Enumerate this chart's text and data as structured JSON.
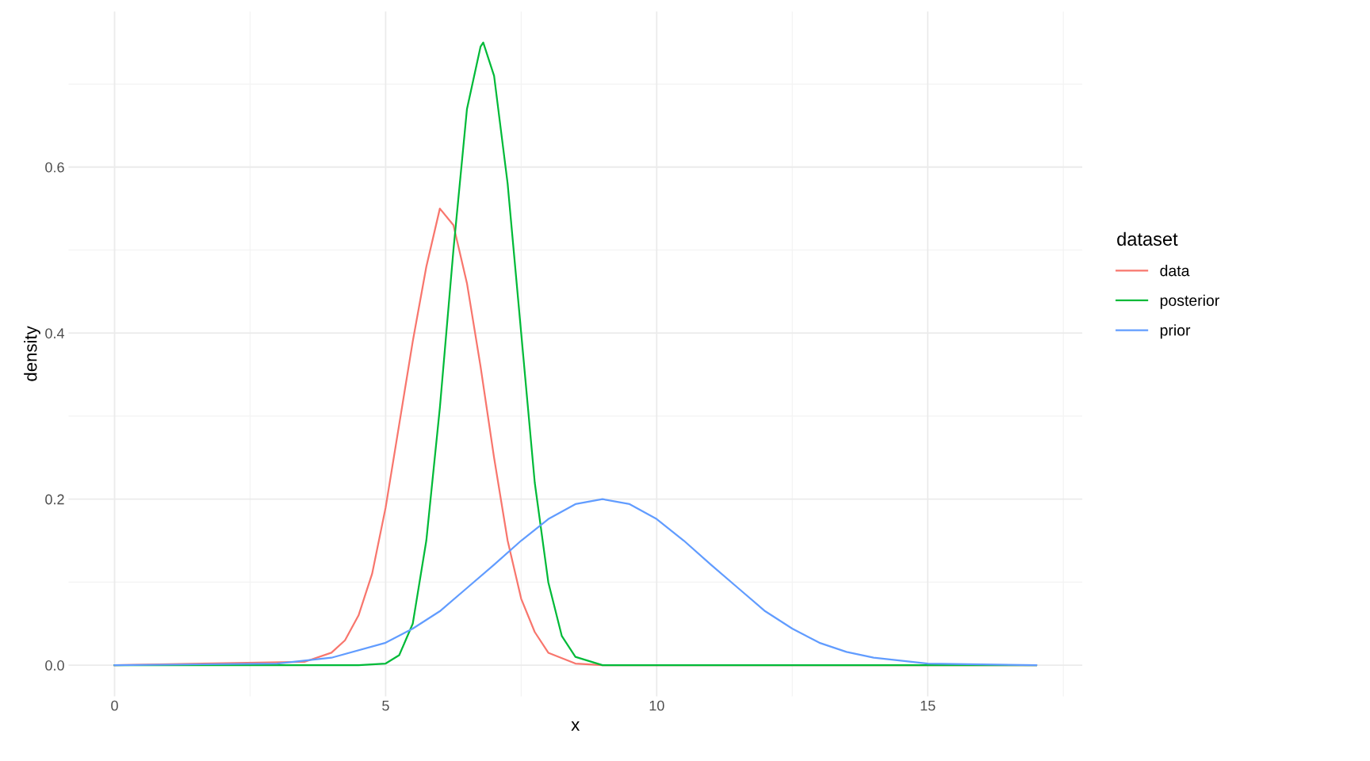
{
  "chart_data": {
    "type": "line",
    "xlabel": "x",
    "ylabel": "density",
    "legend_title": "dataset",
    "legend": "right",
    "grid": true,
    "line_style": "solid",
    "marker": "none",
    "xlim": [
      -0.85,
      17.85
    ],
    "ylim": [
      -0.0375,
      0.7875
    ],
    "xticks": [
      0,
      5,
      10,
      15
    ],
    "yticks": [
      {
        "value": 0,
        "label": "0.0"
      },
      {
        "value": 0.2,
        "label": "0.2"
      },
      {
        "value": 0.4,
        "label": "0.4"
      },
      {
        "value": 0.6,
        "label": "0.6"
      }
    ],
    "series": [
      {
        "name": "data",
        "color": "#f8766d",
        "x": [
          0,
          3.5,
          4,
          4.25,
          4.5,
          4.75,
          5,
          5.25,
          5.5,
          5.75,
          6,
          6.25,
          6.5,
          6.75,
          7,
          7.25,
          7.5,
          7.75,
          8,
          8.5,
          9,
          17
        ],
        "values": [
          0,
          0.004,
          0.015,
          0.03,
          0.06,
          0.11,
          0.19,
          0.29,
          0.39,
          0.48,
          0.55,
          0.53,
          0.46,
          0.36,
          0.25,
          0.15,
          0.08,
          0.04,
          0.015,
          0.002,
          0,
          0
        ]
      },
      {
        "name": "posterior",
        "color": "#00ba38",
        "x": [
          0,
          4.5,
          5,
          5.25,
          5.5,
          5.75,
          6,
          6.25,
          6.5,
          6.75,
          6.8,
          7,
          7.25,
          7.5,
          7.75,
          8,
          8.25,
          8.5,
          9,
          17
        ],
        "values": [
          0,
          0,
          0.002,
          0.012,
          0.05,
          0.15,
          0.31,
          0.5,
          0.67,
          0.745,
          0.75,
          0.71,
          0.58,
          0.4,
          0.22,
          0.1,
          0.035,
          0.01,
          0,
          0
        ]
      },
      {
        "name": "prior",
        "color": "#619cff",
        "x": [
          0,
          3,
          4,
          5,
          5.5,
          6,
          6.5,
          7,
          7.5,
          8,
          8.5,
          9,
          9.5,
          10,
          10.5,
          11,
          11.5,
          12,
          12.5,
          13,
          13.5,
          14,
          15,
          17
        ],
        "values": [
          0,
          0.002,
          0.009,
          0.027,
          0.044,
          0.065,
          0.093,
          0.121,
          0.15,
          0.176,
          0.194,
          0.2,
          0.194,
          0.176,
          0.15,
          0.121,
          0.093,
          0.065,
          0.044,
          0.027,
          0.016,
          0.009,
          0.002,
          0
        ]
      }
    ]
  }
}
